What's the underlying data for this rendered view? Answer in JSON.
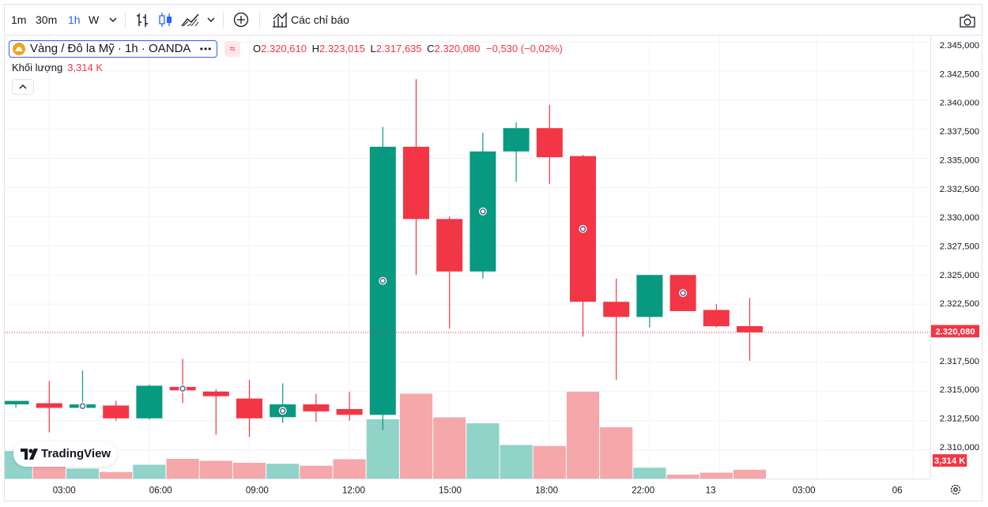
{
  "toolbar": {
    "intervals": [
      "1m",
      "30m",
      "1h",
      "W"
    ],
    "active_interval": "1h",
    "indicators_label": "Các chỉ báo",
    "icons": [
      "chevron-down-icon",
      "bar-chart-icon",
      "candles-icon",
      "area-chart-icon",
      "add-compare-icon",
      "indicators-icon",
      "camera-icon"
    ]
  },
  "legend": {
    "symbol": "Vàng / Đô la Mỹ · 1h · OANDA",
    "more": "•••",
    "approx": "≈",
    "o_key": "O",
    "o_val": "2.320,610",
    "h_key": "H",
    "h_val": "2.323,015",
    "l_key": "L",
    "l_val": "2.317,635",
    "c_key": "C",
    "c_val": "2.320,080",
    "change": "−0,530 (−0,02%)",
    "volume_label": "Khối lượng",
    "volume_value": "3,314 K"
  },
  "branding": {
    "logo": "TradingView"
  },
  "colors": {
    "up": "#089981",
    "down": "#f23645",
    "vol_up": "#8fd3c9",
    "vol_down": "#f5a7aa",
    "grid": "#f0f3fa",
    "axis_text": "#131722"
  },
  "chart_data": {
    "type": "candlestick",
    "title": "Vàng / Đô la Mỹ · 1h · OANDA",
    "price_range": [
      2308.0,
      2345.7
    ],
    "y_ticks": [
      "2.345,000",
      "2.342,500",
      "2.340,000",
      "2.337,500",
      "2.335,000",
      "2.332,500",
      "2.330,000",
      "2.327,500",
      "2.325,000",
      "2.322,500",
      "2.320,000",
      "2.317,500",
      "2.315,000",
      "2.312,500",
      "2.310,000"
    ],
    "y_tick_values": [
      2345,
      2342.5,
      2340,
      2337.5,
      2335,
      2332.5,
      2330,
      2327.5,
      2325,
      2322.5,
      2320,
      2317.5,
      2315,
      2312.5,
      2310
    ],
    "x_labels": [
      {
        "label": "03:00",
        "slot": 1.5
      },
      {
        "label": "06:00",
        "slot": 4.5
      },
      {
        "label": "09:00",
        "slot": 7.5
      },
      {
        "label": "12:00",
        "slot": 10.5
      },
      {
        "label": "15:00",
        "slot": 13.5
      },
      {
        "label": "18:00",
        "slot": 16.5
      },
      {
        "label": "22:00",
        "slot": 19.5
      },
      {
        "label": "13",
        "slot": 21.6
      },
      {
        "label": "03:00",
        "slot": 24.5
      },
      {
        "label": "06",
        "slot": 27.4
      }
    ],
    "volume_max": 6.0,
    "candles": [
      {
        "o": 2313.9,
        "h": 2314.2,
        "l": 2313.6,
        "c": 2314.2,
        "vol": 1.4,
        "event": false
      },
      {
        "o": 2314.0,
        "h": 2315.9,
        "l": 2311.5,
        "c": 2313.6,
        "vol": 1.1,
        "event": false
      },
      {
        "o": 2313.6,
        "h": 2316.8,
        "l": 2313.5,
        "c": 2313.9,
        "vol": 0.5,
        "event": true
      },
      {
        "o": 2313.8,
        "h": 2314.2,
        "l": 2312.5,
        "c": 2312.7,
        "vol": 0.33,
        "event": false
      },
      {
        "o": 2312.7,
        "h": 2315.6,
        "l": 2312.6,
        "c": 2315.5,
        "vol": 0.7,
        "event": false
      },
      {
        "o": 2315.4,
        "h": 2317.8,
        "l": 2314.0,
        "c": 2315.1,
        "vol": 1.0,
        "event": true
      },
      {
        "o": 2315.0,
        "h": 2315.2,
        "l": 2311.3,
        "c": 2314.6,
        "vol": 0.9,
        "event": false
      },
      {
        "o": 2314.4,
        "h": 2316.0,
        "l": 2311.1,
        "c": 2312.7,
        "vol": 0.8,
        "event": false
      },
      {
        "o": 2312.8,
        "h": 2315.7,
        "l": 2312.3,
        "c": 2313.9,
        "vol": 0.75,
        "event": true
      },
      {
        "o": 2313.9,
        "h": 2314.8,
        "l": 2312.4,
        "c": 2313.3,
        "vol": 0.65,
        "event": false
      },
      {
        "o": 2313.5,
        "h": 2315.0,
        "l": 2312.5,
        "c": 2313.0,
        "vol": 0.98,
        "event": false
      },
      {
        "o": 2313.0,
        "h": 2337.7,
        "l": 2311.7,
        "c": 2336.0,
        "vol": 3.0,
        "event": true
      },
      {
        "o": 2336.0,
        "h": 2341.8,
        "l": 2325.0,
        "c": 2329.8,
        "vol": 4.3,
        "event": false
      },
      {
        "o": 2329.8,
        "h": 2330.0,
        "l": 2320.4,
        "c": 2325.3,
        "vol": 3.1,
        "event": false
      },
      {
        "o": 2325.3,
        "h": 2337.2,
        "l": 2324.7,
        "c": 2335.6,
        "vol": 2.8,
        "event": true
      },
      {
        "o": 2335.6,
        "h": 2338.1,
        "l": 2333.0,
        "c": 2337.6,
        "vol": 1.7,
        "event": false
      },
      {
        "o": 2337.6,
        "h": 2339.6,
        "l": 2332.8,
        "c": 2335.1,
        "vol": 1.65,
        "event": false
      },
      {
        "o": 2335.2,
        "h": 2335.3,
        "l": 2319.7,
        "c": 2322.7,
        "vol": 4.4,
        "event": true
      },
      {
        "o": 2322.7,
        "h": 2324.7,
        "l": 2316.0,
        "c": 2321.4,
        "vol": 2.6,
        "event": false
      },
      {
        "o": 2321.4,
        "h": 2325.0,
        "l": 2320.5,
        "c": 2325.0,
        "vol": 0.55,
        "event": false
      },
      {
        "o": 2325.0,
        "h": 2325.0,
        "l": 2321.9,
        "c": 2321.9,
        "vol": 0.2,
        "event": true
      },
      {
        "o": 2322.0,
        "h": 2322.5,
        "l": 2320.5,
        "c": 2320.6,
        "vol": 0.3,
        "event": false
      },
      {
        "o": 2320.61,
        "h": 2323.015,
        "l": 2317.635,
        "c": 2320.08,
        "vol": 0.45,
        "event": false
      }
    ],
    "last_price": 2320.08,
    "last_price_label": "2.320,080",
    "volume_label": "3,314 K"
  }
}
